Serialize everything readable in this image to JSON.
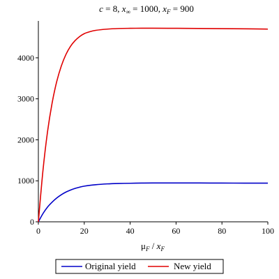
{
  "chart_data": {
    "type": "line",
    "title": {
      "c_sym": "c",
      "c_val": " = 8, ",
      "xinf_sym": "x",
      "xinf_sub": "∞",
      "xinf_val": " = 1000, ",
      "xf_sym": "x",
      "xf_sub": "F",
      "xf_val": " = 900"
    },
    "xlabel": {
      "mu": "μ",
      "mu_sub": "F",
      "slash": " / ",
      "x": "x",
      "x_sub": "F"
    },
    "ylabel": "",
    "xlim": [
      0,
      100
    ],
    "ylim": [
      0,
      4900
    ],
    "x_ticks": [
      0,
      20,
      40,
      60,
      80,
      100
    ],
    "y_ticks": [
      0,
      1000,
      2000,
      3000,
      4000
    ],
    "x_tick_labels": [
      "0",
      "20",
      "40",
      "60",
      "80",
      "100"
    ],
    "y_tick_labels": [
      "0",
      "1000",
      "2000",
      "3000",
      "4000"
    ],
    "grid": false,
    "legend_position": "bottom",
    "series": [
      {
        "name": "Original yield",
        "color": "#0000c8",
        "x": [
          0,
          2,
          4,
          6,
          8,
          10,
          12,
          14,
          16,
          18,
          20,
          25,
          30,
          35,
          40,
          45,
          50,
          60,
          70,
          80,
          90,
          100
        ],
        "y": [
          0,
          200,
          360,
          480,
          580,
          660,
          725,
          775,
          815,
          845,
          870,
          905,
          925,
          935,
          940,
          945,
          948,
          948,
          947,
          945,
          944,
          943
        ]
      },
      {
        "name": "New yield",
        "color": "#e00000",
        "x": [
          0,
          2,
          4,
          6,
          8,
          10,
          12,
          14,
          16,
          18,
          20,
          22,
          25,
          30,
          35,
          40,
          45,
          50,
          60,
          70,
          80,
          90,
          100
        ],
        "y": [
          0,
          1250,
          2200,
          2900,
          3420,
          3800,
          4080,
          4280,
          4420,
          4520,
          4590,
          4630,
          4670,
          4700,
          4715,
          4720,
          4722,
          4722,
          4720,
          4716,
          4712,
          4708,
          4700
        ]
      }
    ]
  }
}
